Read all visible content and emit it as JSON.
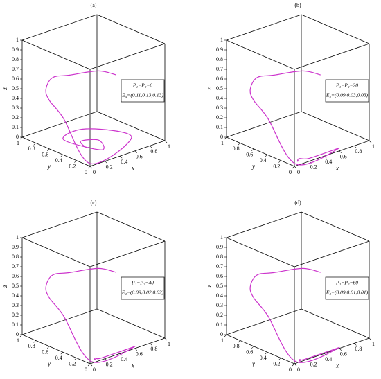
{
  "chart_data": [
    {
      "type": "line3d",
      "title": "(a)",
      "xlabel": "x",
      "ylabel": "y",
      "zlabel": "z",
      "xlim": [
        0,
        1
      ],
      "ylim": [
        0,
        1
      ],
      "zlim": [
        0,
        1
      ],
      "xticks": [
        0,
        0.2,
        0.4,
        0.6,
        0.8,
        1
      ],
      "yticks": [
        0,
        0.2,
        0.4,
        0.6,
        0.8,
        1
      ],
      "zticks": [
        0,
        0.1,
        0.2,
        0.3,
        0.4,
        0.5,
        0.6,
        0.7,
        0.8,
        0.9,
        1
      ],
      "annotation": [
        "P₁=P₂=0",
        "E₄=(0.11,0.13,0.13)"
      ],
      "series": [
        {
          "color": "#cc33cc",
          "x": [
            0.35,
            0.2,
            0.0,
            0.0,
            0.0,
            0.0,
            0.05,
            0.05,
            0.6,
            0.4,
            0.05,
            0.15,
            0.3,
            0.15,
            0.08,
            0.11
          ],
          "y": [
            0.0,
            0.1,
            0.3,
            0.55,
            0.65,
            0.6,
            0.45,
            0.05,
            0.05,
            0.5,
            0.45,
            0.0,
            0.2,
            0.3,
            0.15,
            0.13
          ],
          "z": [
            0.85,
            0.9,
            0.85,
            0.75,
            0.6,
            0.5,
            0.35,
            0.0,
            0.13,
            0.13,
            0.13,
            0.13,
            0.13,
            0.13,
            0.13,
            0.13
          ]
        }
      ]
    },
    {
      "type": "line3d",
      "title": "(b)",
      "xlabel": "x",
      "ylabel": "y",
      "zlabel": "z",
      "xlim": [
        0,
        1
      ],
      "ylim": [
        0,
        1
      ],
      "zlim": [
        0,
        1
      ],
      "xticks": [
        0,
        0.2,
        0.4,
        0.6,
        0.8,
        1
      ],
      "yticks": [
        0,
        0.2,
        0.4,
        0.6,
        0.8,
        1
      ],
      "zticks": [
        0,
        0.1,
        0.2,
        0.3,
        0.4,
        0.5,
        0.6,
        0.7,
        0.8,
        0.9,
        1
      ],
      "annotation": [
        "P₁=P₂=20",
        "E₄=(0.09,0.03,0.03)"
      ],
      "series": [
        {
          "color": "#cc33cc",
          "x": [
            0.35,
            0.2,
            0.0,
            0.0,
            0.0,
            0.0,
            0.05,
            0.05,
            0.6,
            0.2,
            0.12,
            0.06,
            0.09
          ],
          "y": [
            0.0,
            0.1,
            0.3,
            0.55,
            0.65,
            0.6,
            0.45,
            0.03,
            0.0,
            0.0,
            0.06,
            0.02,
            0.03
          ],
          "z": [
            0.85,
            0.9,
            0.85,
            0.75,
            0.6,
            0.5,
            0.35,
            0.0,
            0.03,
            0.03,
            0.03,
            0.03,
            0.03
          ]
        }
      ]
    },
    {
      "type": "line3d",
      "title": "(c)",
      "xlabel": "x",
      "ylabel": "y",
      "zlabel": "z",
      "xlim": [
        0,
        1
      ],
      "ylim": [
        0,
        1
      ],
      "zlim": [
        0,
        1
      ],
      "xticks": [
        0,
        0.2,
        0.4,
        0.6,
        0.8,
        1
      ],
      "yticks": [
        0,
        0.2,
        0.4,
        0.6,
        0.8,
        1
      ],
      "zticks": [
        0,
        0.1,
        0.2,
        0.3,
        0.4,
        0.5,
        0.6,
        0.7,
        0.8,
        0.9,
        1
      ],
      "annotation": [
        "P₁=P₂=40",
        "E₄=(0.09,0.02,0.02)"
      ],
      "series": [
        {
          "color": "#cc33cc",
          "x": [
            0.35,
            0.2,
            0.0,
            0.0,
            0.0,
            0.0,
            0.05,
            0.05,
            0.6,
            0.15,
            0.11,
            0.07,
            0.09
          ],
          "y": [
            0.0,
            0.1,
            0.3,
            0.55,
            0.65,
            0.6,
            0.45,
            0.03,
            0.0,
            0.0,
            0.04,
            0.01,
            0.02
          ],
          "z": [
            0.85,
            0.9,
            0.85,
            0.75,
            0.6,
            0.5,
            0.35,
            0.0,
            0.02,
            0.02,
            0.02,
            0.02,
            0.02
          ]
        }
      ]
    },
    {
      "type": "line3d",
      "title": "(d)",
      "xlabel": "x",
      "ylabel": "y",
      "zlabel": "z",
      "xlim": [
        0,
        1
      ],
      "ylim": [
        0,
        1
      ],
      "zlim": [
        0,
        1
      ],
      "xticks": [
        0,
        0.2,
        0.4,
        0.6,
        0.8,
        1
      ],
      "yticks": [
        0,
        0.2,
        0.4,
        0.6,
        0.8,
        1
      ],
      "zticks": [
        0,
        0.1,
        0.2,
        0.3,
        0.4,
        0.5,
        0.6,
        0.7,
        0.8,
        0.9,
        1
      ],
      "annotation": [
        "P₁=P₂=60",
        "E₄=(0.09,0.01,0.01)"
      ],
      "series": [
        {
          "color": "#cc33cc",
          "x": [
            0.35,
            0.2,
            0.0,
            0.0,
            0.0,
            0.0,
            0.05,
            0.05,
            0.6,
            0.14,
            0.1,
            0.07,
            0.09
          ],
          "y": [
            0.0,
            0.1,
            0.3,
            0.55,
            0.65,
            0.6,
            0.45,
            0.03,
            0.0,
            0.0,
            0.03,
            0.0,
            0.01
          ],
          "z": [
            0.85,
            0.9,
            0.85,
            0.75,
            0.6,
            0.5,
            0.35,
            0.0,
            0.01,
            0.01,
            0.01,
            0.01,
            0.01
          ]
        }
      ]
    }
  ]
}
